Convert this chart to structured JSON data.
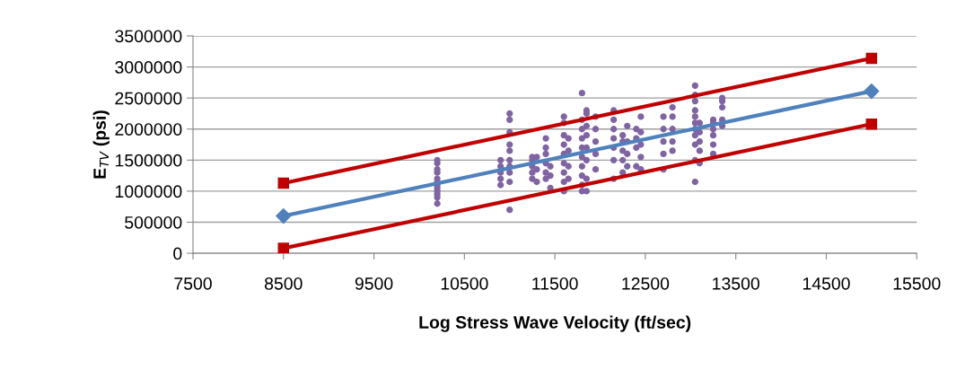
{
  "chart_data": {
    "type": "scatter",
    "xlabel": "Log Stress Wave Velocity (ft/sec)",
    "ylabel": "E$_{TV}$ (psi)",
    "xlim": [
      7500,
      15500
    ],
    "xticks": [
      7500,
      8500,
      9500,
      10500,
      11500,
      12500,
      13500,
      14500,
      15500
    ],
    "ylim": [
      0,
      3500000
    ],
    "yticks": [
      0,
      500000,
      1000000,
      1500000,
      2000000,
      2500000,
      3000000,
      3500000
    ],
    "grid": "y",
    "legend": false,
    "series": [
      {
        "color": "#8064a2",
        "marker": "circle",
        "x": [
          10200,
          10200,
          10200,
          10200,
          10200,
          10200,
          10200,
          10200,
          10200,
          10200,
          10200,
          10200,
          10900,
          10900,
          10900,
          10900,
          10900,
          11000,
          11000,
          11000,
          11000,
          11000,
          11000,
          11000,
          11000,
          11000,
          11000,
          11250,
          11250,
          11250,
          11250,
          11250,
          11300,
          11300,
          11300,
          11400,
          11400,
          11400,
          11400,
          11400,
          11400,
          11450,
          11450,
          11450,
          11600,
          11600,
          11600,
          11600,
          11600,
          11600,
          11600,
          11600,
          11600,
          11650,
          11650,
          11650,
          11650,
          11800,
          11800,
          11800,
          11800,
          11800,
          11800,
          11800,
          11800,
          11800,
          11800,
          11850,
          11850,
          11850,
          11850,
          11850,
          11850,
          11850,
          11850,
          11950,
          11950,
          11950,
          11950,
          11950,
          12150,
          12150,
          12150,
          12150,
          12150,
          12150,
          12150,
          12250,
          12250,
          12250,
          12250,
          12250,
          12300,
          12300,
          12300,
          12300,
          12400,
          12400,
          12400,
          12400,
          12450,
          12450,
          12450,
          12450,
          12450,
          12700,
          12700,
          12700,
          12700,
          12700,
          12800,
          12800,
          12800,
          12800,
          12800,
          13050,
          13050,
          13050,
          13050,
          13050,
          13050,
          13050,
          13050,
          13050,
          13050,
          13050,
          13100,
          13100,
          13100,
          13100,
          13100,
          13250,
          13250,
          13250,
          13250,
          13250,
          13250,
          13350,
          13350,
          13350,
          13350,
          13350
        ],
        "values": [
          800000,
          900000,
          950000,
          1000000,
          1050000,
          1100000,
          1150000,
          1200000,
          1300000,
          1350000,
          1450000,
          1500000,
          1100000,
          1200000,
          1300000,
          1400000,
          1500000,
          700000,
          1150000,
          1300000,
          1400000,
          1500000,
          1650000,
          1750000,
          1950000,
          2150000,
          2250000,
          1200000,
          1300000,
          1400000,
          1500000,
          1550000,
          1150000,
          1350000,
          1550000,
          1200000,
          1300000,
          1450000,
          1600000,
          1700000,
          1850000,
          1050000,
          1250000,
          1400000,
          1000000,
          1150000,
          1300000,
          1450000,
          1600000,
          1750000,
          1900000,
          2100000,
          2200000,
          1200000,
          1400000,
          1650000,
          1850000,
          1000000,
          1100000,
          1250000,
          1400000,
          1550000,
          1700000,
          1850000,
          2000000,
          2150000,
          2580000,
          1000000,
          1200000,
          1500000,
          1700000,
          1900000,
          2050000,
          2250000,
          2300000,
          1350000,
          1600000,
          1800000,
          2000000,
          2200000,
          1200000,
          1500000,
          1700000,
          1850000,
          2000000,
          2150000,
          2300000,
          1300000,
          1500000,
          1650000,
          1800000,
          1900000,
          1400000,
          1600000,
          1800000,
          2050000,
          1400000,
          1700000,
          1850000,
          2000000,
          1350000,
          1550000,
          1750000,
          1950000,
          2200000,
          1350000,
          1600000,
          1800000,
          2000000,
          2200000,
          1650000,
          1800000,
          2000000,
          2200000,
          2350000,
          1150000,
          1500000,
          1750000,
          1900000,
          2000000,
          2100000,
          2200000,
          2300000,
          2450000,
          2550000,
          2700000,
          1450000,
          1650000,
          1800000,
          1950000,
          2100000,
          1600000,
          1750000,
          1900000,
          2000000,
          2100000,
          2150000,
          2050000,
          2150000,
          2350000,
          2450000,
          2500000
        ]
      },
      {
        "type": "line",
        "color": "#4f81bd",
        "marker": "diamond",
        "x": [
          8500,
          15000
        ],
        "values": [
          600000,
          2610000
        ]
      },
      {
        "type": "line",
        "color": "#c00000",
        "marker": "square",
        "x": [
          8500,
          15000
        ],
        "values": [
          1130000,
          3140000
        ]
      },
      {
        "type": "line",
        "color": "#c00000",
        "marker": "square",
        "x": [
          8500,
          15000
        ],
        "values": [
          80000,
          2080000
        ]
      }
    ]
  }
}
